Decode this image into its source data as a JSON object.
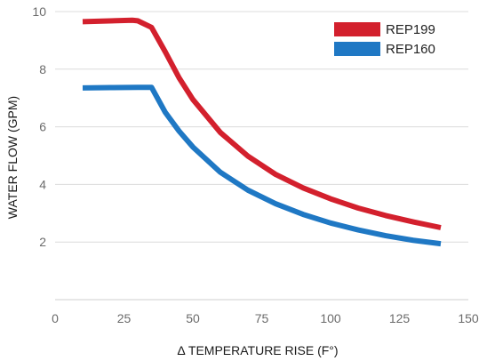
{
  "chart_data": {
    "type": "line",
    "xlabel": "Δ TEMPERATURE RISE (F°)",
    "ylabel": "WATER FLOW (GPM)",
    "xlim": [
      0,
      150
    ],
    "ylim": [
      0,
      10
    ],
    "x_ticks": [
      0,
      25,
      50,
      75,
      100,
      125,
      150
    ],
    "y_ticks": [
      2,
      4,
      6,
      8,
      10
    ],
    "grid": "horizontal",
    "legend_position": "top-right",
    "series": [
      {
        "name": "REP199",
        "color": "#d3202d",
        "points": [
          [
            10,
            9.65
          ],
          [
            28,
            9.7
          ],
          [
            30,
            9.68
          ],
          [
            35,
            9.45
          ],
          [
            40,
            8.6
          ],
          [
            45,
            7.7
          ],
          [
            50,
            6.95
          ],
          [
            60,
            5.8
          ],
          [
            70,
            4.98
          ],
          [
            80,
            4.35
          ],
          [
            90,
            3.88
          ],
          [
            100,
            3.5
          ],
          [
            110,
            3.18
          ],
          [
            120,
            2.92
          ],
          [
            130,
            2.7
          ],
          [
            140,
            2.5
          ]
        ]
      },
      {
        "name": "REP160",
        "color": "#1f78c4",
        "points": [
          [
            10,
            7.35
          ],
          [
            20,
            7.36
          ],
          [
            30,
            7.37
          ],
          [
            35,
            7.37
          ],
          [
            40,
            6.5
          ],
          [
            45,
            5.85
          ],
          [
            50,
            5.3
          ],
          [
            60,
            4.42
          ],
          [
            70,
            3.8
          ],
          [
            80,
            3.33
          ],
          [
            90,
            2.96
          ],
          [
            100,
            2.66
          ],
          [
            110,
            2.42
          ],
          [
            120,
            2.22
          ],
          [
            130,
            2.06
          ],
          [
            140,
            1.94
          ]
        ]
      }
    ]
  }
}
